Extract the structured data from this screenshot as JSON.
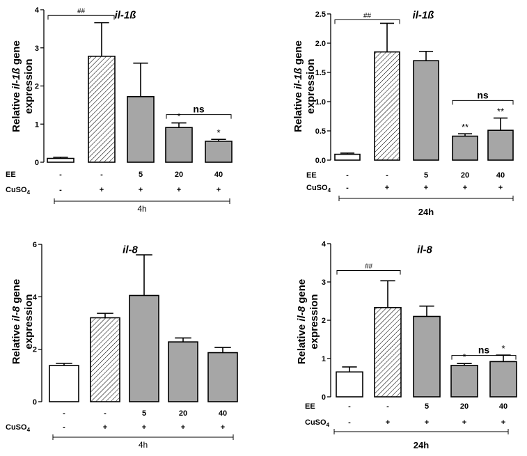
{
  "chart_data": [
    {
      "type": "bar",
      "title": "il-1ß",
      "ylabel_line1_prefix": "Relative ",
      "ylabel_line1_gene": "il-1ß",
      "ylabel_line1_suffix": " gene",
      "ylabel_line2": "expression",
      "ylim": [
        0,
        4
      ],
      "yticks": [
        "0",
        "1",
        "2",
        "3",
        "4"
      ],
      "categories": [
        "Control",
        "CuSO4",
        "CuSO4+EE5",
        "CuSO4+EE20",
        "CuSO4+EE40"
      ],
      "values": [
        0.1,
        2.78,
        1.72,
        0.91,
        0.55
      ],
      "errors": [
        0.03,
        0.88,
        0.88,
        0.12,
        0.05
      ],
      "fills": [
        "white",
        "hatch",
        "gray",
        "gray",
        "gray"
      ],
      "row_labels": {
        "ee": "EE",
        "cuso4_base": "CuSO",
        "cuso4_sub": "4"
      },
      "ee_values": [
        "-",
        "-",
        "5",
        "20",
        "40"
      ],
      "cuso4_values": [
        "-",
        "+",
        "+",
        "+",
        "+"
      ],
      "time_label": "4h",
      "time_bold": false,
      "brackets": [
        {
          "from": 0,
          "to": 1,
          "label": "##",
          "y": 3.85
        },
        {
          "from": 3,
          "to": 4,
          "label": "ns",
          "y": 1.25
        }
      ],
      "stars": [
        {
          "bar": 3,
          "label": "*"
        },
        {
          "bar": 4,
          "label": "*"
        }
      ]
    },
    {
      "type": "bar",
      "title": "il-1ß",
      "ylabel_line1_prefix": "Relative ",
      "ylabel_line1_gene": "il-1ß",
      "ylabel_line1_suffix": " gene",
      "ylabel_line2": "expression",
      "ylim": [
        0,
        2.5
      ],
      "yticks": [
        "0.0",
        "0.5",
        "1.0",
        "1.5",
        "2.0",
        "2.5"
      ],
      "categories": [
        "Control",
        "CuSO4",
        "CuSO4+EE5",
        "CuSO4+EE20",
        "CuSO4+EE40"
      ],
      "values": [
        0.1,
        1.85,
        1.7,
        0.41,
        0.51
      ],
      "errors": [
        0.02,
        0.49,
        0.16,
        0.04,
        0.21
      ],
      "fills": [
        "white",
        "hatch",
        "gray",
        "gray",
        "gray"
      ],
      "row_labels": {
        "ee": "EE",
        "cuso4_base": "CuSO",
        "cuso4_sub": "4"
      },
      "ee_values": [
        "-",
        "-",
        "5",
        "20",
        "40"
      ],
      "cuso4_values": [
        "-",
        "+",
        "+",
        "+",
        "+"
      ],
      "time_label": "24h",
      "time_bold": true,
      "brackets": [
        {
          "from": 0,
          "to": 1,
          "label": "##",
          "y": 2.4
        },
        {
          "from": 3,
          "to": 4,
          "label": "ns",
          "y": 1.02
        }
      ],
      "stars": [
        {
          "bar": 3,
          "label": "**"
        },
        {
          "bar": 4,
          "label": "**"
        }
      ]
    },
    {
      "type": "bar",
      "title": "il-8",
      "ylabel_line1_prefix": "Relative ",
      "ylabel_line1_gene": "il-8",
      "ylabel_line1_suffix": " gene",
      "ylabel_line2": "expression",
      "ylim": [
        0,
        6
      ],
      "yticks": [
        "0",
        "2",
        "4",
        "6"
      ],
      "categories": [
        "Control",
        "CuSO4",
        "CuSO4+EE5",
        "CuSO4+EE20",
        "CuSO4+EE40"
      ],
      "values": [
        1.38,
        3.2,
        4.05,
        2.28,
        1.87
      ],
      "errors": [
        0.08,
        0.17,
        1.55,
        0.15,
        0.2
      ],
      "fills": [
        "white",
        "hatch",
        "gray",
        "gray",
        "gray"
      ],
      "row_labels": {
        "ee": "",
        "cuso4_base": "CuSO",
        "cuso4_sub": "4"
      },
      "ee_values": [
        "-",
        "-",
        "5",
        "20",
        "40"
      ],
      "cuso4_values": [
        "-",
        "+",
        "+",
        "+",
        "+"
      ],
      "time_label": "4h",
      "time_bold": false,
      "brackets": [],
      "stars": []
    },
    {
      "type": "bar",
      "title": "il-8",
      "ylabel_line1_prefix": "Relative ",
      "ylabel_line1_gene": "il-8",
      "ylabel_line1_suffix": " gene",
      "ylabel_line2": "expression",
      "ylim": [
        0,
        4
      ],
      "yticks": [
        "0",
        "1",
        "2",
        "3",
        "4"
      ],
      "categories": [
        "Control",
        "CuSO4",
        "CuSO4+EE5",
        "CuSO4+EE20",
        "CuSO4+EE40"
      ],
      "values": [
        0.65,
        2.33,
        2.1,
        0.82,
        0.92
      ],
      "errors": [
        0.13,
        0.7,
        0.27,
        0.05,
        0.17
      ],
      "fills": [
        "white",
        "hatch",
        "gray",
        "gray",
        "gray"
      ],
      "row_labels": {
        "ee": "EE",
        "cuso4_base": "CuSO",
        "cuso4_sub": "4"
      },
      "ee_values": [
        "-",
        "-",
        "5",
        "20",
        "40"
      ],
      "cuso4_values": [
        "-",
        "+",
        "+",
        "+",
        "+"
      ],
      "time_label": "24h",
      "time_bold": true,
      "brackets": [
        {
          "from": 0,
          "to": 1,
          "label": "##",
          "y": 3.3
        },
        {
          "from": 3,
          "to": 4,
          "label": "ns",
          "y": 1.08
        }
      ],
      "stars": [
        {
          "bar": 3,
          "label": "*"
        },
        {
          "bar": 4,
          "label": "*"
        }
      ]
    }
  ],
  "colors": {
    "bar_gray": "#a6a6a6",
    "bar_white": "#ffffff",
    "stroke": "#000000"
  }
}
